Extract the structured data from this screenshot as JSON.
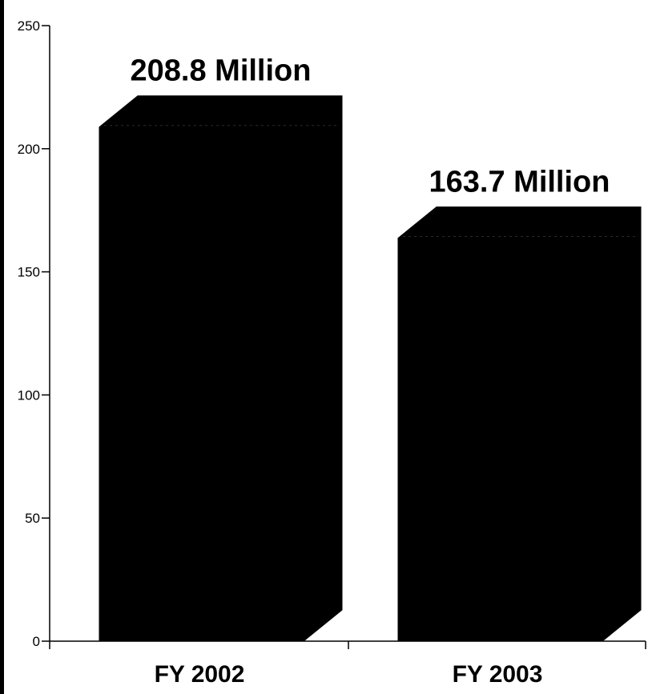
{
  "chart_data": {
    "type": "bar",
    "categories": [
      "FY 2002",
      "FY 2003"
    ],
    "values": [
      208.8,
      163.7
    ],
    "data_labels": [
      "208.8 Million",
      "163.7 Million"
    ],
    "yticks": [
      "0",
      "50",
      "100",
      "150",
      "200",
      "250"
    ],
    "ylim": [
      0,
      250
    ],
    "grid": false,
    "bar_color": "#000000"
  }
}
